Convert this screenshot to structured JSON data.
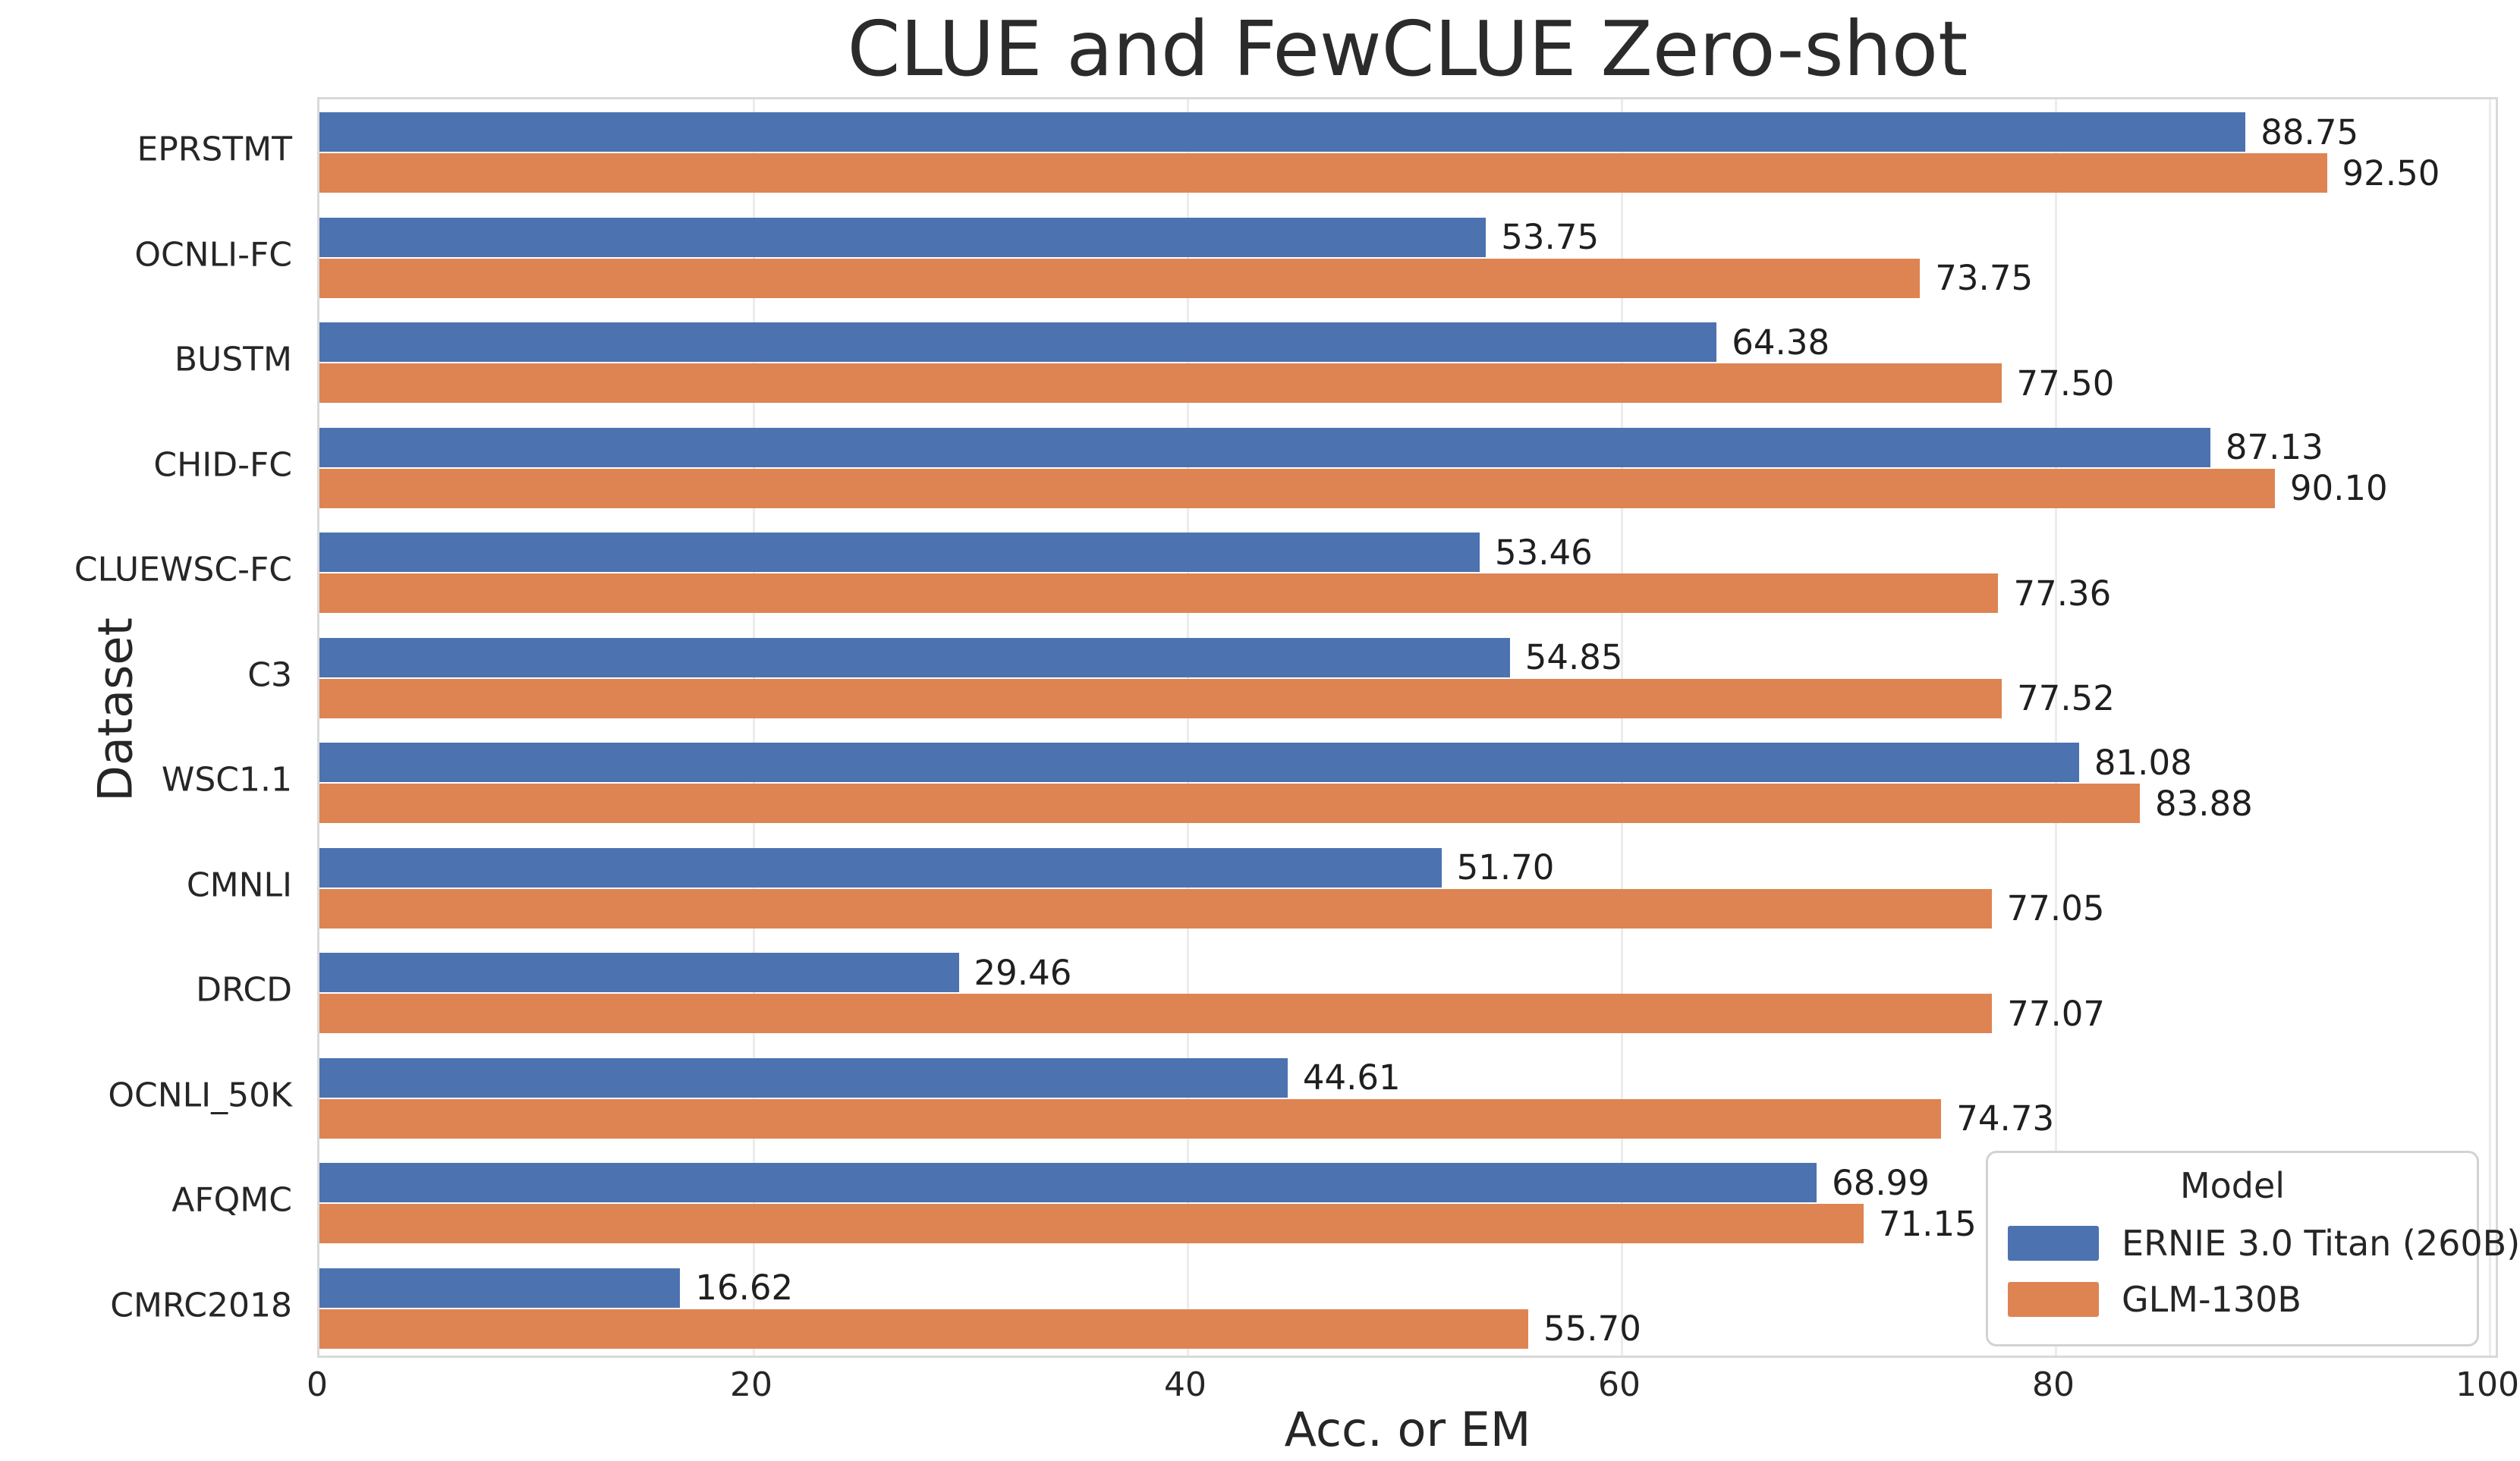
{
  "chart_data": {
    "type": "bar",
    "orientation": "horizontal",
    "title": "CLUE and FewCLUE Zero-shot",
    "xlabel": "Acc. or EM",
    "ylabel": "Dataset",
    "xlim": [
      0,
      100
    ],
    "xticks": [
      "0",
      "20",
      "40",
      "60",
      "80",
      "100"
    ],
    "grid": "vertical-light",
    "value_label_decimals": 2,
    "categories": [
      "EPRSTMT",
      "OCNLI-FC",
      "BUSTM",
      "CHID-FC",
      "CLUEWSC-FC",
      "C3",
      "WSC1.1",
      "CMNLI",
      "DRCD",
      "OCNLI_50K",
      "AFQMC",
      "CMRC2018"
    ],
    "series": [
      {
        "name": "ERNIE 3.0 Titan (260B)",
        "color": "#4C72B0",
        "values": [
          88.75,
          53.75,
          64.38,
          87.13,
          53.46,
          54.85,
          81.08,
          51.7,
          29.46,
          44.61,
          68.99,
          16.62
        ]
      },
      {
        "name": "GLM-130B",
        "color": "#DD8452",
        "values": [
          92.5,
          73.75,
          77.5,
          90.1,
          77.36,
          77.52,
          83.88,
          77.05,
          77.07,
          74.73,
          71.15,
          55.7
        ]
      }
    ],
    "legend": {
      "title": "Model",
      "position": "lower right"
    },
    "colors": {
      "text": "#262626",
      "grid": "#ececec",
      "spine": "#d9d9d9",
      "background": "#ffffff"
    }
  }
}
